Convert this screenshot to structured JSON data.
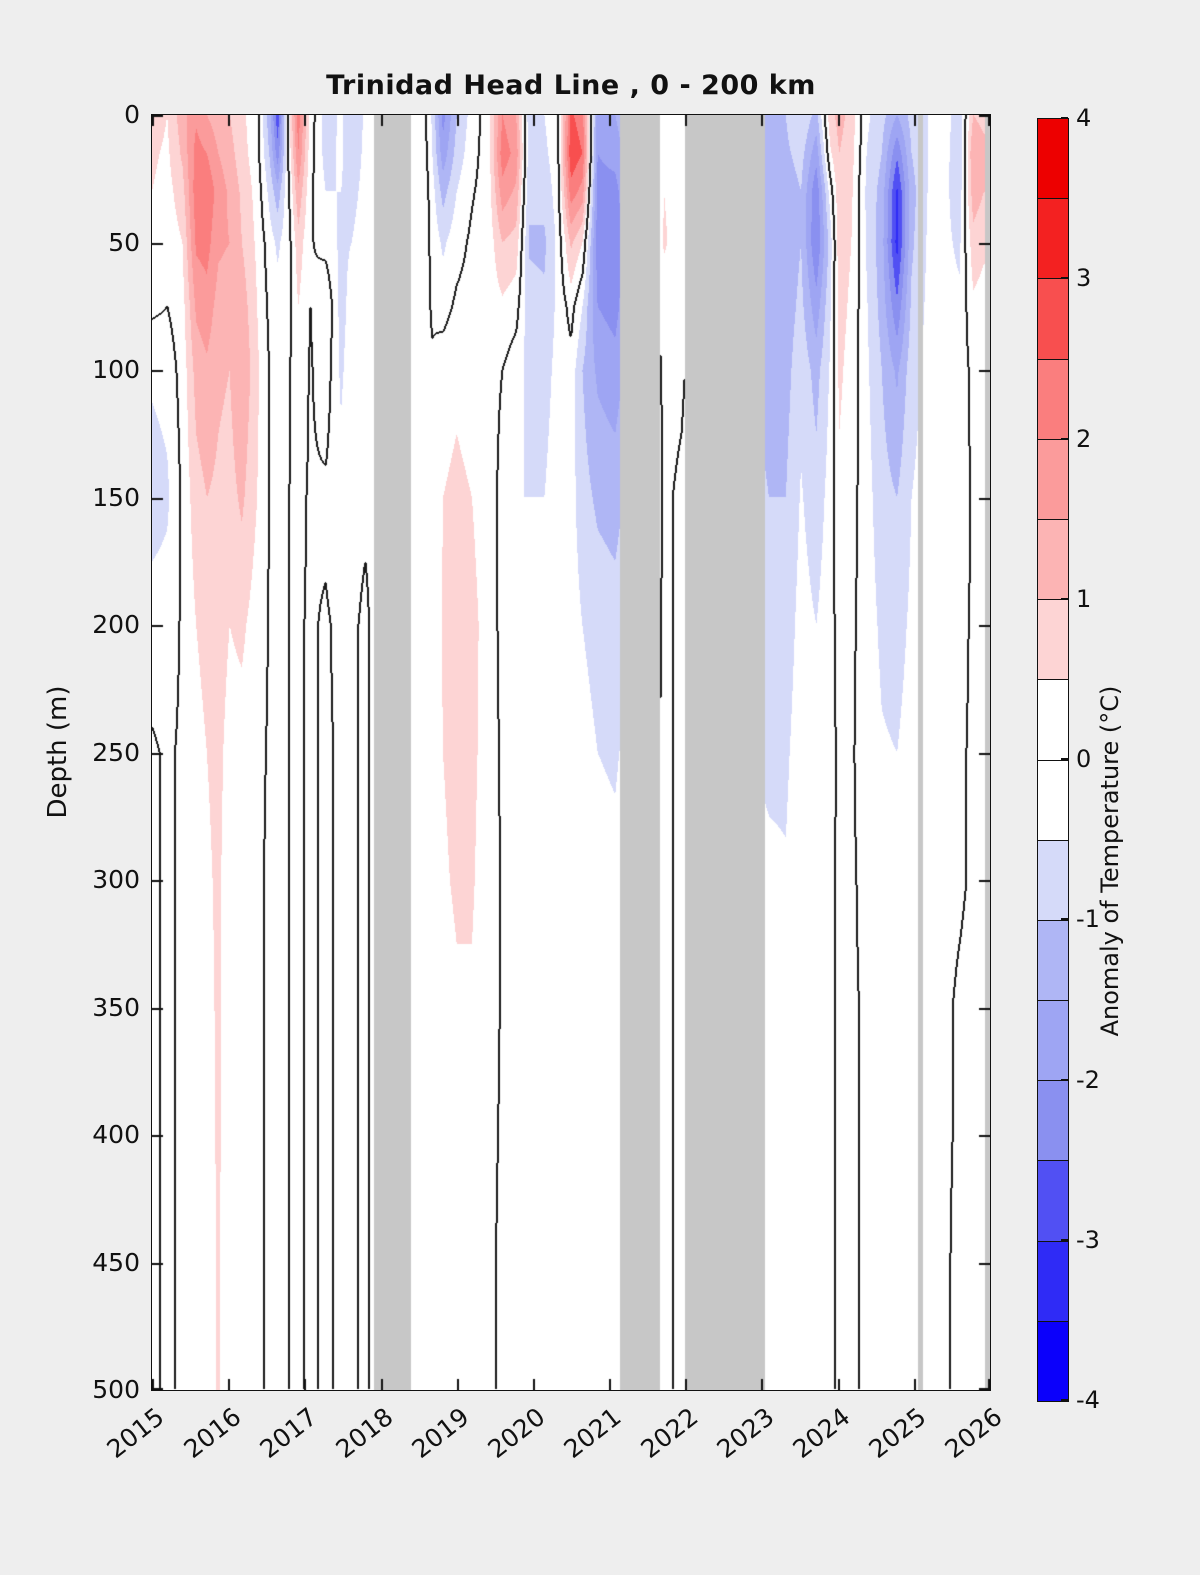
{
  "figure": {
    "background": "#EEEEEE",
    "plot_background": "#FFFFFF",
    "missing_color": "#C7C7C7",
    "axis_color": "#111111",
    "contour_color": "#1A1A1A"
  },
  "chart_data": {
    "type": "heatmap",
    "title": "Trinidad Head Line , 0 - 200 km",
    "xlabel": "",
    "ylabel": "Depth (m)",
    "colorbar_label": "Anomaly of Temperature (°C)",
    "xlim": [
      2015,
      2026
    ],
    "ylim": [
      0,
      500
    ],
    "clim": [
      -4,
      4
    ],
    "grid_on": false,
    "legend_position": "right-colorbar",
    "x_ticks": [
      "2015",
      "2016",
      "2017",
      "2018",
      "2019",
      "2020",
      "2021",
      "2022",
      "2023",
      "2024",
      "2025",
      "2026"
    ],
    "x_tick_values": [
      2015,
      2016,
      2017,
      2018,
      2019,
      2020,
      2021,
      2022,
      2023,
      2024,
      2025,
      2026
    ],
    "y_ticks": [
      "0",
      "50",
      "100",
      "150",
      "200",
      "250",
      "300",
      "350",
      "400",
      "450",
      "500"
    ],
    "y_tick_values": [
      0,
      50,
      100,
      150,
      200,
      250,
      300,
      350,
      400,
      450,
      500
    ],
    "colorbar_ticks": [
      "4",
      "3",
      "2",
      "1",
      "0",
      "-1",
      "-2",
      "-3",
      "-4"
    ],
    "colorbar_tick_values": [
      4,
      3,
      2,
      1,
      0,
      -1,
      -2,
      -3,
      -4
    ],
    "colormap": {
      "level_step": 0.5,
      "levels_min": -4,
      "levels_max": 4,
      "colors_neg_to_pos": [
        "#0B00FB",
        "#2F2BF6",
        "#5150F3",
        "#8A90F0",
        "#9EA5F3",
        "#AFB6F5",
        "#D5DAF9",
        "#FFFFFF",
        "#FFFFFF",
        "#FDD4D4",
        "#FCB4B4",
        "#FB9B9B",
        "#FA7E7E",
        "#F84F4F",
        "#F32121",
        "#ED0000"
      ]
    },
    "contour_level": 0,
    "missing_intervals": [
      [
        2017.92,
        2018.4
      ],
      [
        2021.14,
        2021.67
      ],
      [
        2021.99,
        2023.05
      ],
      [
        2025.06,
        2025.12
      ],
      [
        2025.94,
        2026.0
      ]
    ],
    "grid": {
      "depths": [
        0,
        15,
        30,
        50,
        75,
        100,
        150,
        200,
        250,
        300,
        350,
        400,
        450,
        500
      ],
      "times": [
        2015.0,
        2015.2,
        2015.4,
        2015.58,
        2015.72,
        2015.87,
        2016.02,
        2016.18,
        2016.38,
        2016.55,
        2016.65,
        2016.8,
        2016.92,
        2017.08,
        2017.28,
        2017.48,
        2017.62,
        2017.8,
        2017.9,
        2018.42,
        2018.55,
        2018.68,
        2018.82,
        2019.0,
        2019.2,
        2019.42,
        2019.6,
        2019.78,
        2019.95,
        2020.15,
        2020.32,
        2020.5,
        2020.65,
        2020.85,
        2021.08,
        2021.72,
        2021.95,
        2023.1,
        2023.32,
        2023.52,
        2023.72,
        2023.9,
        2024.02,
        2024.18,
        2024.38,
        2024.58,
        2024.78,
        2024.97,
        2025.18,
        2025.42,
        2025.6,
        2025.78,
        2025.92
      ],
      "values": [
        [
          0.8,
          0.6,
          0.5,
          0.3,
          0.1,
          -0.4,
          -0.8,
          -0.2,
          0.05,
          0.05,
          0.05,
          0.05,
          0.05,
          0.05
        ],
        [
          0.5,
          0.4,
          0.3,
          0.2,
          0,
          -0.3,
          -0.6,
          -0.2,
          -0.05,
          -0.05,
          -0.05,
          -0.05,
          -0.05,
          -0.05
        ],
        [
          1.3,
          1.1,
          0.8,
          0.5,
          0.3,
          0.2,
          0.1,
          0.05,
          0.05,
          0.05,
          0.05,
          0.05,
          0.05,
          0.05
        ],
        [
          1.9,
          2.2,
          2.3,
          2.1,
          1.6,
          1.2,
          0.8,
          0.5,
          0.3,
          0.2,
          0.1,
          0.05,
          0.05,
          0.05
        ],
        [
          1.5,
          2.0,
          2.4,
          2.2,
          1.8,
          1.4,
          1.0,
          0.7,
          0.5,
          0.4,
          0.3,
          0.2,
          0.15,
          0.1
        ],
        [
          1.2,
          1.5,
          1.8,
          1.6,
          1.3,
          1.1,
          0.9,
          0.75,
          0.65,
          0.6,
          0.6,
          0.6,
          0.6,
          0.6
        ],
        [
          1.0,
          1.2,
          1.4,
          1.5,
          1.2,
          1.0,
          0.8,
          0.5,
          0.3,
          0.2,
          0.15,
          0.1,
          0.05,
          0.05
        ],
        [
          0.6,
          0.7,
          0.9,
          1.0,
          1.3,
          1.5,
          1.1,
          0.6,
          0.3,
          0.2,
          0.1,
          0.05,
          0.05,
          0.05
        ],
        [
          0.2,
          0.2,
          0.3,
          0.4,
          0.5,
          0.6,
          0.5,
          0.25,
          0.1,
          0.05,
          0.05,
          0.05,
          0.05,
          0.05
        ],
        [
          -1.4,
          -1.1,
          -0.7,
          -0.3,
          -0.15,
          -0.05,
          -0.05,
          -0.05,
          -0.05,
          -0.05,
          -0.05,
          -0.05,
          -0.05,
          -0.05
        ],
        [
          -2.9,
          -2.3,
          -1.3,
          -0.6,
          -0.3,
          -0.1,
          -0.05,
          -0.05,
          -0.05,
          -0.05,
          -0.05,
          -0.05,
          -0.05,
          -0.05
        ],
        [
          0.4,
          0.2,
          0,
          -0.15,
          -0.1,
          -0.05,
          0,
          0,
          0,
          0,
          0,
          0,
          0,
          0
        ],
        [
          2.3,
          2.0,
          1.4,
          0.8,
          0.5,
          0.3,
          0.1,
          0.05,
          0.05,
          0.05,
          0.05,
          0.05,
          0.05,
          0.05
        ],
        [
          0.3,
          0.2,
          0.1,
          0.05,
          0,
          -0.05,
          -0.05,
          -0.05,
          -0.05,
          -0.05,
          -0.05,
          -0.05,
          -0.05,
          -0.05
        ],
        [
          -0.8,
          -0.7,
          -0.5,
          -0.2,
          0.5,
          0.3,
          -0.1,
          0.05,
          0.05,
          0.05,
          0.05,
          0.05,
          0.05,
          0.05
        ],
        [
          -0.4,
          -0.4,
          -0.5,
          -0.6,
          -0.7,
          -0.6,
          -0.3,
          -0.1,
          -0.05,
          -0.05,
          -0.05,
          -0.05,
          -0.05,
          -0.05
        ],
        [
          -1.0,
          -0.9,
          -0.7,
          -0.5,
          -0.3,
          -0.2,
          -0.1,
          -0.05,
          -0.05,
          -0.05,
          -0.05,
          -0.05,
          -0.05,
          -0.05
        ],
        [
          -0.4,
          -0.35,
          -0.3,
          -0.2,
          -0.1,
          -0.05,
          -0.05,
          0.05,
          0.05,
          0.05,
          0.05,
          0.05,
          0.05,
          0.05
        ],
        [
          -0.2,
          -0.15,
          -0.1,
          -0.05,
          -0.05,
          -0.05,
          -0.05,
          -0.05,
          -0.05,
          -0.05,
          -0.05,
          -0.05,
          -0.05,
          -0.05
        ],
        [
          0.1,
          0.2,
          0.3,
          0.25,
          0.15,
          0.1,
          0.05,
          0.05,
          0.05,
          0.05,
          0.05,
          0.05,
          0.05,
          0.05
        ],
        [
          0.3,
          0.4,
          0.45,
          0.35,
          0.2,
          0.1,
          0.05,
          0.05,
          0.05,
          0.05,
          0.05,
          0.05,
          0.05,
          0.05
        ],
        [
          -0.6,
          -0.5,
          -0.3,
          -0.15,
          -0.05,
          0.05,
          0.1,
          0.15,
          0.15,
          0.1,
          0.05,
          0.05,
          0.05,
          0.05
        ],
        [
          -2.2,
          -1.8,
          -1.2,
          -0.6,
          -0.2,
          0.3,
          0.5,
          0.55,
          0.5,
          0.45,
          0.35,
          0.25,
          0.15,
          0.1
        ],
        [
          -1.0,
          -0.8,
          -0.5,
          -0.2,
          0.1,
          0.4,
          0.6,
          0.6,
          0.6,
          0.55,
          0.45,
          0.35,
          0.25,
          0.15
        ],
        [
          -0.3,
          -0.2,
          -0.05,
          0.1,
          0.2,
          0.3,
          0.5,
          0.6,
          0.6,
          0.55,
          0.45,
          0.3,
          0.2,
          0.1
        ],
        [
          0.3,
          0.3,
          0.25,
          0.2,
          0.2,
          0.2,
          0.3,
          0.35,
          0.3,
          0.25,
          0.2,
          0.1,
          0.05,
          0.05
        ],
        [
          2.0,
          2.3,
          1.8,
          1.0,
          0.4,
          0,
          -0.2,
          -0.2,
          -0.1,
          -0.05,
          -0.05,
          -0.05,
          -0.05,
          -0.05
        ],
        [
          1.5,
          1.8,
          1.4,
          0.8,
          0.2,
          -0.3,
          -0.5,
          -0.35,
          -0.2,
          -0.1,
          -0.05,
          -0.05,
          -0.05,
          -0.05
        ],
        [
          -0.8,
          -0.75,
          -0.9,
          -1.05,
          -0.85,
          -0.65,
          -0.5,
          -0.4,
          -0.3,
          -0.2,
          -0.1,
          -0.05,
          -0.05,
          -0.05
        ],
        [
          -0.5,
          -0.6,
          -0.8,
          -1.1,
          -0.9,
          -0.7,
          -0.5,
          -0.4,
          -0.3,
          -0.2,
          -0.1,
          -0.05,
          -0.05,
          -0.05
        ],
        [
          -0.2,
          -0.25,
          -0.3,
          -0.4,
          -0.4,
          -0.35,
          -0.25,
          -0.2,
          -0.1,
          -0.05,
          -0.05,
          -0.05,
          -0.05,
          -0.05
        ],
        [
          2.6,
          2.9,
          2.3,
          1.1,
          0.2,
          -0.2,
          -0.3,
          -0.25,
          -0.15,
          -0.1,
          -0.05,
          -0.05,
          -0.05,
          -0.05
        ],
        [
          2.2,
          2.5,
          1.8,
          0.5,
          -0.5,
          -1.0,
          -0.8,
          -0.5,
          -0.3,
          -0.2,
          -0.1,
          -0.05,
          -0.05,
          -0.05
        ],
        [
          -1.8,
          -2.0,
          -2.2,
          -2.3,
          -2.0,
          -1.6,
          -1.1,
          -0.7,
          -0.5,
          -0.35,
          -0.25,
          -0.15,
          -0.1,
          -0.05
        ],
        [
          -1.5,
          -1.8,
          -2.2,
          -2.4,
          -2.2,
          -1.8,
          -1.2,
          -0.8,
          -0.55,
          -0.4,
          -0.25,
          -0.15,
          -0.1,
          -0.05
        ],
        [
          0.2,
          0.35,
          0.5,
          0.55,
          0.3,
          0.1,
          0.05,
          0.05,
          0.05,
          0.05,
          0.05,
          0.05,
          0.05,
          0.05
        ],
        [
          0.1,
          0.15,
          0.3,
          0.3,
          0.15,
          0.05,
          -0.05,
          -0.05,
          -0.05,
          -0.05,
          -0.05,
          -0.05,
          -0.05,
          -0.05
        ],
        [
          -1.2,
          -1.3,
          -1.4,
          -1.45,
          -1.35,
          -1.2,
          -1.0,
          -0.8,
          -0.6,
          -0.4,
          -0.25,
          -0.1,
          -0.05,
          -0.05
        ],
        [
          -1.0,
          -1.1,
          -1.3,
          -1.4,
          -1.3,
          -1.2,
          -1.0,
          -0.8,
          -0.6,
          -0.45,
          -0.3,
          -0.15,
          -0.05,
          -0.05
        ],
        [
          -0.5,
          -0.8,
          -1.0,
          -1.0,
          -0.85,
          -0.65,
          -0.45,
          -0.3,
          -0.2,
          -0.1,
          -0.05,
          -0.05,
          -0.05,
          -0.05
        ],
        [
          -1.2,
          -1.8,
          -2.4,
          -2.5,
          -1.8,
          -1.2,
          -0.8,
          -0.5,
          -0.3,
          -0.2,
          -0.1,
          -0.05,
          -0.05,
          -0.05
        ],
        [
          0.8,
          0.4,
          -0.3,
          -0.8,
          -0.6,
          -0.45,
          -0.3,
          -0.2,
          -0.1,
          -0.05,
          -0.05,
          -0.05,
          -0.05,
          -0.05
        ],
        [
          1.2,
          1.0,
          0.9,
          0.8,
          0.7,
          0.6,
          0.4,
          0.2,
          0.05,
          0.05,
          0.05,
          0.05,
          0.05,
          0.05
        ],
        [
          0.8,
          0.7,
          0.6,
          0.5,
          0.4,
          0.3,
          0.2,
          0.1,
          0.05,
          0.05,
          0.05,
          0.05,
          0.05,
          0.05
        ],
        [
          -0.4,
          -0.5,
          -0.6,
          -0.55,
          -0.45,
          -0.4,
          -0.3,
          -0.25,
          -0.2,
          -0.1,
          -0.05,
          -0.05,
          -0.05,
          -0.05
        ],
        [
          -0.8,
          -1.0,
          -1.2,
          -1.3,
          -1.2,
          -1.0,
          -0.8,
          -0.6,
          -0.45,
          -0.3,
          -0.2,
          -0.1,
          -0.05,
          -0.05
        ],
        [
          -1.5,
          -2.4,
          -3.1,
          -3.2,
          -2.4,
          -1.6,
          -1.0,
          -0.7,
          -0.5,
          -0.35,
          -0.2,
          -0.1,
          -0.05,
          -0.05
        ],
        [
          -0.8,
          -1.0,
          -1.2,
          -1.1,
          -0.9,
          -0.7,
          -0.5,
          -0.4,
          -0.3,
          -0.2,
          -0.1,
          -0.05,
          -0.05,
          -0.05
        ],
        [
          -0.5,
          -0.5,
          -0.5,
          -0.45,
          -0.4,
          -0.35,
          -0.3,
          -0.25,
          -0.2,
          -0.1,
          -0.05,
          -0.05,
          -0.05,
          -0.05
        ],
        [
          -0.3,
          -0.35,
          -0.4,
          -0.4,
          -0.35,
          -0.3,
          -0.25,
          -0.2,
          -0.15,
          -0.1,
          -0.05,
          -0.05,
          -0.05,
          -0.05
        ],
        [
          -0.8,
          -0.9,
          -0.8,
          -0.6,
          -0.4,
          -0.3,
          -0.2,
          -0.1,
          -0.05,
          -0.05,
          0.05,
          0.05,
          0.1,
          0.1
        ],
        [
          1.0,
          1.5,
          1.3,
          0.8,
          0.4,
          0.15,
          0.05,
          0.05,
          0.05,
          0.05,
          0.1,
          0.15,
          0.2,
          0.2
        ],
        [
          0.8,
          1.2,
          1.0,
          0.6,
          0.3,
          0.1,
          0.05,
          0.05,
          0.05,
          0.05,
          0.1,
          0.2,
          0.3,
          0.3
        ]
      ]
    }
  }
}
